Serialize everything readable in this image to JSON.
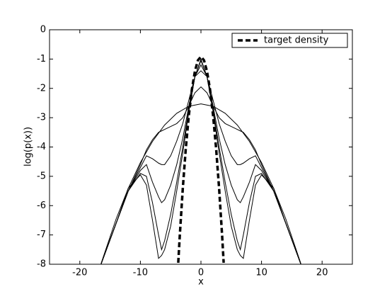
{
  "chart_data": {
    "type": "line",
    "xlabel": "x",
    "ylabel": "log(p(x))",
    "xlim": [
      -25,
      25
    ],
    "ylim": [
      -8,
      0
    ],
    "xticks": [
      -20,
      -10,
      0,
      10,
      20
    ],
    "yticks": [
      0,
      -1,
      -2,
      -3,
      -4,
      -5,
      -6,
      -7,
      -8
    ],
    "legend": "upper right",
    "series": [
      {
        "color": "#000000",
        "linestyle": "solid",
        "x": [
          -16.5,
          -14,
          -12,
          -10,
          -8,
          -6,
          -4,
          -2,
          0,
          2,
          4,
          6,
          8,
          10,
          12,
          14,
          16.5
        ],
        "values": [
          -7.98,
          -6.45,
          -5.41,
          -4.53,
          -3.81,
          -3.25,
          -2.85,
          -2.61,
          -2.53,
          -2.61,
          -2.85,
          -3.25,
          -3.81,
          -4.53,
          -5.41,
          -6.45,
          -7.98
        ]
      },
      {
        "color": "#000000",
        "linestyle": "solid",
        "x": [
          -16.5,
          -14,
          -12,
          -10,
          -9,
          -8,
          -7,
          -6.5,
          -6,
          -5,
          -4,
          -3,
          -2,
          -1,
          0,
          1,
          2,
          3,
          4,
          5,
          6,
          6.5,
          7,
          8,
          9,
          10,
          12,
          14,
          16.5
        ],
        "values": [
          -8,
          -6.6,
          -5.5,
          -4.6,
          -4.1,
          -3.75,
          -3.5,
          -3.45,
          -3.4,
          -3.3,
          -3.2,
          -3.0,
          -2.6,
          -2.15,
          -1.95,
          -2.15,
          -2.6,
          -3.0,
          -3.2,
          -3.3,
          -3.4,
          -3.45,
          -3.5,
          -3.75,
          -4.1,
          -4.6,
          -5.5,
          -6.6,
          -8
        ]
      },
      {
        "color": "#000000",
        "linestyle": "solid",
        "x": [
          -16.5,
          -14,
          -12,
          -10,
          -9,
          -8,
          -7,
          -6.5,
          -6,
          -5,
          -4,
          -3,
          -2,
          -1,
          0,
          1,
          2,
          3,
          4,
          5,
          6,
          6.5,
          7,
          8,
          9,
          10,
          12,
          14,
          16.5
        ],
        "values": [
          -8,
          -6.6,
          -5.5,
          -4.7,
          -4.3,
          -4.4,
          -4.55,
          -4.6,
          -4.6,
          -4.3,
          -3.8,
          -3.2,
          -2.4,
          -1.6,
          -1.4,
          -1.6,
          -2.4,
          -3.2,
          -3.8,
          -4.3,
          -4.6,
          -4.6,
          -4.55,
          -4.4,
          -4.3,
          -4.7,
          -5.5,
          -6.6,
          -8
        ]
      },
      {
        "color": "#000000",
        "linestyle": "solid",
        "x": [
          -16.5,
          -14,
          -12,
          -10,
          -9,
          -8,
          -7,
          -6.5,
          -6,
          -5,
          -4,
          -3,
          -2,
          -1,
          0,
          1,
          2,
          3,
          4,
          5,
          6,
          6.5,
          7,
          8,
          9,
          10,
          12,
          14,
          16.5
        ],
        "values": [
          -8,
          -6.6,
          -5.5,
          -4.8,
          -4.6,
          -5.2,
          -5.7,
          -5.9,
          -5.8,
          -5.3,
          -4.6,
          -3.7,
          -2.6,
          -1.6,
          -1.2,
          -1.6,
          -2.6,
          -3.7,
          -4.6,
          -5.3,
          -5.8,
          -5.9,
          -5.7,
          -5.2,
          -4.6,
          -4.8,
          -5.5,
          -6.6,
          -8
        ]
      },
      {
        "color": "#000000",
        "linestyle": "solid",
        "x": [
          -16.5,
          -14,
          -12,
          -10,
          -9,
          -8,
          -7,
          -6.5,
          -6,
          -5,
          -4,
          -3,
          -2,
          -1,
          0,
          1,
          2,
          3,
          4,
          5,
          6,
          6.5,
          7,
          8,
          9,
          10,
          12,
          14,
          16.5
        ],
        "values": [
          -8,
          -6.6,
          -5.5,
          -4.9,
          -5.0,
          -5.9,
          -7.0,
          -7.5,
          -7.2,
          -6.3,
          -5.2,
          -4.0,
          -2.7,
          -1.6,
          -1.05,
          -1.6,
          -2.7,
          -4.0,
          -5.2,
          -6.3,
          -7.2,
          -7.5,
          -7.0,
          -5.9,
          -5.0,
          -4.9,
          -5.5,
          -6.6,
          -8
        ]
      },
      {
        "color": "#000000",
        "linestyle": "solid",
        "x": [
          -16.5,
          -14,
          -12,
          -10,
          -9,
          -8,
          -7,
          -6.5,
          -6,
          -5,
          -4,
          -3,
          -2,
          -1,
          0,
          1,
          2,
          3,
          4,
          5,
          6,
          6.5,
          7,
          8,
          9,
          10,
          12,
          14,
          16.5
        ],
        "values": [
          -8,
          -6.6,
          -5.4,
          -4.95,
          -5.3,
          -6.5,
          -7.8,
          -7.7,
          -7.5,
          -6.7,
          -5.5,
          -4.2,
          -2.8,
          -1.6,
          -1.0,
          -1.6,
          -2.8,
          -4.2,
          -5.5,
          -6.7,
          -7.5,
          -7.7,
          -7.8,
          -6.5,
          -5.3,
          -4.95,
          -5.4,
          -6.6,
          -8
        ]
      },
      {
        "name": "target density",
        "color": "#000000",
        "linestyle": "dashed",
        "x": [
          -3.75,
          -3.5,
          -3,
          -2.5,
          -2,
          -1.5,
          -1,
          -0.5,
          0,
          0.5,
          1,
          1.5,
          2,
          2.5,
          3,
          3.5,
          3.75
        ],
        "values": [
          -7.95,
          -7.04,
          -5.42,
          -4.04,
          -2.92,
          -2.04,
          -1.42,
          -1.04,
          -0.92,
          -1.04,
          -1.42,
          -2.04,
          -2.92,
          -4.04,
          -5.42,
          -7.04,
          -7.95
        ]
      }
    ]
  }
}
